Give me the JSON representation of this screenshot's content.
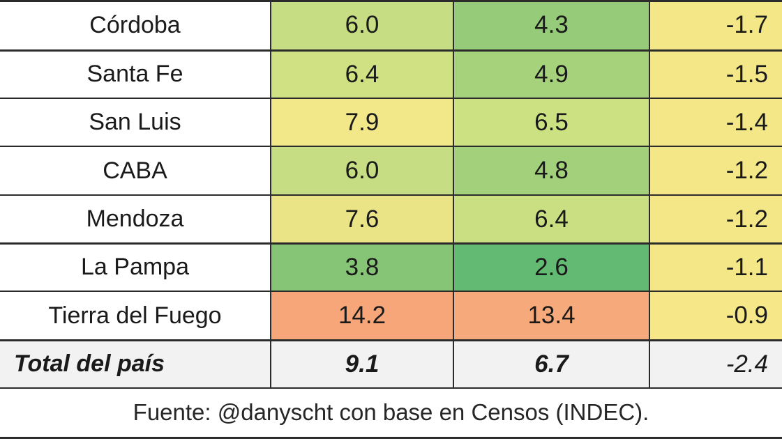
{
  "chart_data": {
    "type": "table",
    "rows": [
      {
        "region": "Córdoba",
        "v1": "6.0",
        "v2": "4.3",
        "diff": "-1.7",
        "colors": [
          "#c6dd83",
          "#96cc79",
          "#f4e787"
        ]
      },
      {
        "region": "Santa Fe",
        "v1": "6.4",
        "v2": "4.9",
        "diff": "-1.5",
        "colors": [
          "#cfe182",
          "#a5d27b",
          "#f4e787"
        ]
      },
      {
        "region": "San Luis",
        "v1": "7.9",
        "v2": "6.5",
        "diff": "-1.4",
        "colors": [
          "#f2e789",
          "#cce182",
          "#f4e787"
        ]
      },
      {
        "region": "CABA",
        "v1": "6.0",
        "v2": "4.8",
        "diff": "-1.2",
        "colors": [
          "#c6dd83",
          "#a3d17b",
          "#f4e787"
        ]
      },
      {
        "region": "Mendoza",
        "v1": "7.6",
        "v2": "6.4",
        "diff": "-1.2",
        "colors": [
          "#ebe486",
          "#cadf82",
          "#f4e787"
        ]
      },
      {
        "region": "La Pampa",
        "v1": "3.8",
        "v2": "2.6",
        "diff": "-1.1",
        "colors": [
          "#86c576",
          "#63bb73",
          "#f4e787"
        ]
      },
      {
        "region": "Tierra del Fuego",
        "v1": "14.2",
        "v2": "13.4",
        "diff": "-0.9",
        "colors": [
          "#f6a679",
          "#f6a97a",
          "#f6e889"
        ]
      }
    ],
    "total": {
      "region": "Total del país",
      "v1": "9.1",
      "v2": "6.7",
      "diff": "-2.4",
      "color": "#f2f2f2"
    }
  },
  "footer": {
    "source": "Fuente: @danyscht con base en Censos (INDEC)."
  }
}
